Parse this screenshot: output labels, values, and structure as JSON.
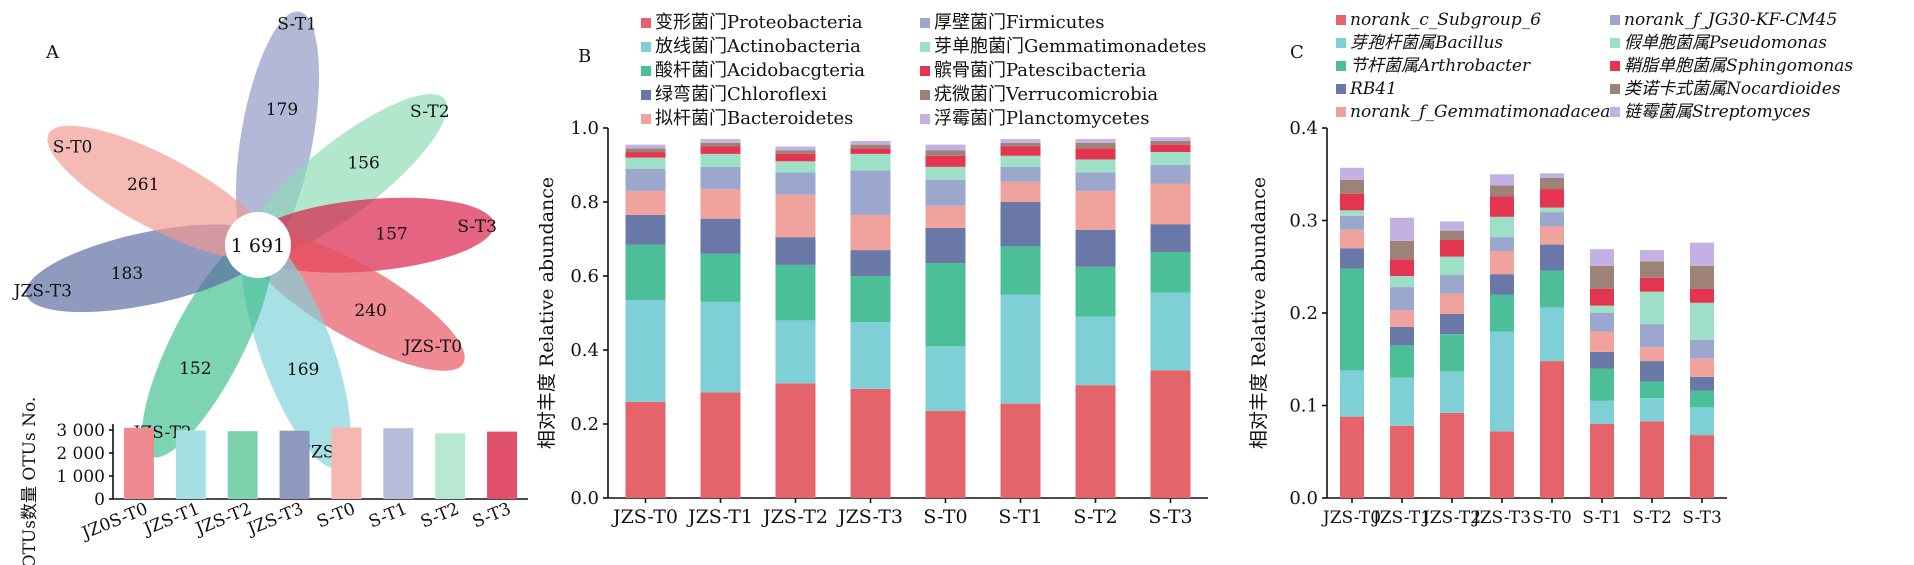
{
  "panels": {
    "A": {
      "label": "A",
      "venn": {
        "core_value": "1 691",
        "petals": [
          {
            "name": "S-T1",
            "value": 179,
            "color": "#8e97c2"
          },
          {
            "name": "S-T2",
            "value": 156,
            "color": "#8fdcb5"
          },
          {
            "name": "S-T3",
            "value": 157,
            "color": "#d91b46"
          },
          {
            "name": "JZS-T0",
            "value": 240,
            "color": "#e8535e"
          },
          {
            "name": "JZS-T1",
            "value": 169,
            "color": "#7fd3d9"
          },
          {
            "name": "JZS-T2",
            "value": 152,
            "color": "#3fc08e"
          },
          {
            "name": "JZS-T3",
            "value": 183,
            "color": "#5a6aa1"
          },
          {
            "name": "S-T0",
            "value": 261,
            "color": "#f19a92"
          }
        ]
      },
      "otu_bar": {
        "ylabel": "OTUs数量 OTUs No.",
        "ticks": [
          "0",
          "1 000",
          "2 000",
          "3 000"
        ],
        "ylim": [
          0,
          3000
        ],
        "categories": [
          "JZ0S-T0",
          "JZS-T1",
          "JZS-T2",
          "JZS-T3",
          "S-T0",
          "S-T1",
          "S-T2",
          "S-T3"
        ],
        "values": [
          3100,
          2980,
          2950,
          2970,
          3110,
          3080,
          2860,
          2930
        ],
        "colors": [
          "#f08a91",
          "#a5e0e3",
          "#7dd3ae",
          "#8f98bd",
          "#f6b7b0",
          "#b6bcd9",
          "#b8e8d2",
          "#e0506c"
        ]
      }
    },
    "B": {
      "label": "B",
      "chart_data": {
        "type": "bar",
        "stacked": true,
        "ylabel": "相对丰度  Relative abundance",
        "ylim": [
          0,
          1.0
        ],
        "ticks": [
          "0.0",
          "0.2",
          "0.4",
          "0.6",
          "0.8",
          "1.0"
        ],
        "categories": [
          "JZS-T0",
          "JZS-T1",
          "JZS-T2",
          "JZS-T3",
          "S-T0",
          "S-T1",
          "S-T2",
          "S-T3"
        ],
        "series": [
          {
            "name": "变形菌门Proteobacteria",
            "color": "#e5636a",
            "values": [
              0.26,
              0.285,
              0.31,
              0.295,
              0.235,
              0.255,
              0.305,
              0.345
            ]
          },
          {
            "name": "放线菌门Actinobacteria",
            "color": "#7fcfd6",
            "values": [
              0.275,
              0.245,
              0.17,
              0.18,
              0.175,
              0.295,
              0.185,
              0.21
            ]
          },
          {
            "name": "酸杆菌门Acidobacgteria",
            "color": "#4dbf98",
            "values": [
              0.15,
              0.13,
              0.15,
              0.125,
              0.225,
              0.13,
              0.135,
              0.11
            ]
          },
          {
            "name": "绿弯菌门Chloroflexi",
            "color": "#6a78a8",
            "values": [
              0.08,
              0.095,
              0.075,
              0.07,
              0.095,
              0.12,
              0.1,
              0.075
            ]
          },
          {
            "name": "拟杆菌门Bacteroidetes",
            "color": "#f0a39d",
            "values": [
              0.065,
              0.08,
              0.115,
              0.095,
              0.06,
              0.055,
              0.105,
              0.11
            ]
          },
          {
            "name": "厚壁菌门Firmicutes",
            "color": "#9ba7cc",
            "values": [
              0.06,
              0.06,
              0.06,
              0.12,
              0.07,
              0.04,
              0.05,
              0.05
            ]
          },
          {
            "name": "芽单胞菌门Gemmatimonadetes",
            "color": "#9ddfc7",
            "values": [
              0.03,
              0.035,
              0.03,
              0.045,
              0.035,
              0.03,
              0.035,
              0.035
            ]
          },
          {
            "name": "髌骨菌门Patescibacteria",
            "color": "#e33550",
            "values": [
              0.015,
              0.02,
              0.02,
              0.015,
              0.03,
              0.025,
              0.03,
              0.02
            ]
          },
          {
            "name": "疣微菌门Verrucomicrobia",
            "color": "#9d8278",
            "values": [
              0.01,
              0.01,
              0.01,
              0.01,
              0.015,
              0.01,
              0.015,
              0.01
            ]
          },
          {
            "name": "浮霉菌门Planctomycetes",
            "color": "#c4b1e3",
            "values": [
              0.01,
              0.01,
              0.01,
              0.01,
              0.015,
              0.01,
              0.01,
              0.01
            ]
          }
        ]
      }
    },
    "C": {
      "label": "C",
      "chart_data": {
        "type": "bar",
        "stacked": true,
        "ylabel": "相对丰度  Relative abundance",
        "ylim": [
          0,
          0.4
        ],
        "ticks": [
          "0.0",
          "0.1",
          "0.2",
          "0.3",
          "0.4"
        ],
        "categories": [
          "JZS-T0",
          "JZS-T1",
          "JZS-T2",
          "JZS-T3",
          "S-T0",
          "S-T1",
          "S-T2",
          "S-T3"
        ],
        "series": [
          {
            "name": "norank_c_Subgroup_6",
            "color": "#e5636a",
            "values": [
              0.088,
              0.078,
              0.092,
              0.072,
              0.148,
              0.08,
              0.083,
              0.068
            ]
          },
          {
            "name": "芽孢杆菌属Bacillus",
            "color": "#7fcfd6",
            "values": [
              0.05,
              0.052,
              0.045,
              0.108,
              0.058,
              0.025,
              0.025,
              0.03
            ]
          },
          {
            "name": "节杆菌属Arthrobacter",
            "color": "#4dbf98",
            "values": [
              0.11,
              0.035,
              0.04,
              0.04,
              0.04,
              0.035,
              0.018,
              0.018
            ]
          },
          {
            "name": "RB41",
            "color": "#6a78a8",
            "values": [
              0.022,
              0.02,
              0.022,
              0.022,
              0.028,
              0.018,
              0.022,
              0.015
            ]
          },
          {
            "name": "norank_f_Gemmatimonadaceae",
            "color": "#f0a39d",
            "values": [
              0.02,
              0.018,
              0.022,
              0.025,
              0.02,
              0.022,
              0.015,
              0.02
            ]
          },
          {
            "name": "norank_f_JG30-KF-CM45",
            "color": "#9ba7cc",
            "values": [
              0.015,
              0.025,
              0.02,
              0.015,
              0.015,
              0.02,
              0.025,
              0.02
            ]
          },
          {
            "name": "假单胞菌属Pseudomonas",
            "color": "#9ddfc7",
            "values": [
              0.006,
              0.012,
              0.02,
              0.022,
              0.005,
              0.008,
              0.035,
              0.04
            ]
          },
          {
            "name": "鞘脂单胞菌属Sphingomonas",
            "color": "#e33550",
            "values": [
              0.018,
              0.018,
              0.018,
              0.022,
              0.02,
              0.018,
              0.015,
              0.015
            ]
          },
          {
            "name": "类诺卡式菌属Nocardioides",
            "color": "#9d8278",
            "values": [
              0.015,
              0.02,
              0.01,
              0.012,
              0.012,
              0.025,
              0.018,
              0.025
            ]
          },
          {
            "name": "链霉菌属Streptomyces",
            "color": "#c4b1e3",
            "values": [
              0.013,
              0.025,
              0.01,
              0.012,
              0.005,
              0.018,
              0.012,
              0.025
            ]
          }
        ]
      }
    }
  }
}
